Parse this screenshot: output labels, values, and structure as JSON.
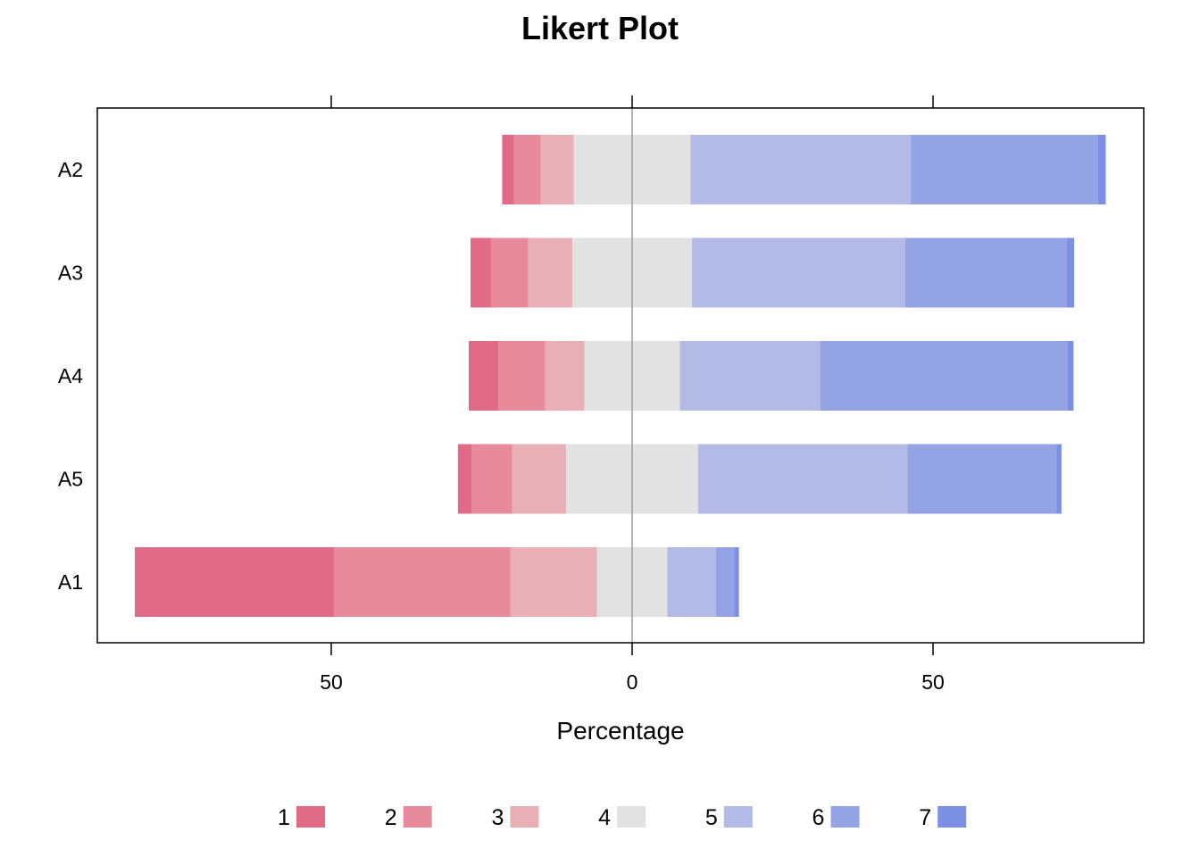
{
  "chart_data": {
    "type": "bar",
    "subtype": "diverging-stacked-likert",
    "title": "Likert Plot",
    "xlabel": "Percentage",
    "ylabel": "",
    "xlim": [
      -83,
      85
    ],
    "xticks": [
      -50,
      0,
      50
    ],
    "xtick_labels": [
      "50",
      "0",
      "50"
    ],
    "center_line": 0,
    "grid": false,
    "legend_position": "bottom",
    "levels": [
      "1",
      "2",
      "3",
      "4",
      "5",
      "6",
      "7"
    ],
    "colors": [
      "#E16A86",
      "#E78A9B",
      "#E8AFB7",
      "#E2E2E2",
      "#B3BAE5",
      "#93A3E4",
      "#7B8FE5"
    ],
    "categories": [
      "A2",
      "A3",
      "A4",
      "A5",
      "A1"
    ],
    "series": [
      {
        "name": "1",
        "values": [
          2.0,
          3.4,
          4.9,
          2.3,
          33.2
        ]
      },
      {
        "name": "2",
        "values": [
          4.4,
          6.2,
          7.8,
          6.7,
          29.2
        ]
      },
      {
        "name": "3",
        "values": [
          5.5,
          7.3,
          6.5,
          9.0,
          14.4
        ]
      },
      {
        "name": "4",
        "values": [
          19.4,
          19.9,
          15.9,
          21.9,
          11.7
        ]
      },
      {
        "name": "5",
        "values": [
          36.6,
          35.4,
          23.3,
          34.8,
          8.1
        ]
      },
      {
        "name": "6",
        "values": [
          31.1,
          26.9,
          41.1,
          24.8,
          3.0
        ]
      },
      {
        "name": "7",
        "values": [
          1.3,
          1.2,
          1.0,
          0.8,
          0.8
        ]
      }
    ]
  }
}
